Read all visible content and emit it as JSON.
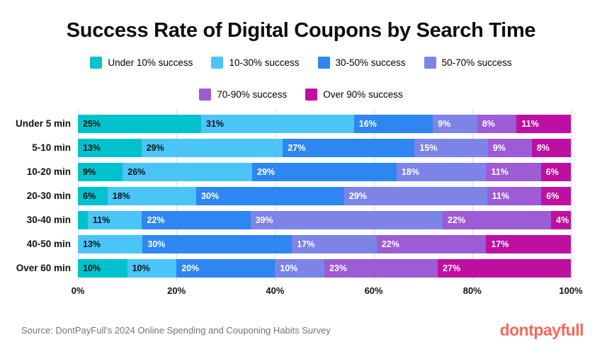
{
  "title": "Success Rate of Digital Coupons by Search Time",
  "footer": {
    "source": "Source: DontPayFull's 2024 Online Spending and Couponing Habits Survey",
    "logo": "dontpayfull",
    "logo_color": "#F8685C"
  },
  "chart_data": {
    "type": "bar",
    "orientation": "horizontal-stacked",
    "title": "Success Rate of Digital Coupons by Search Time",
    "categories": [
      "Under 5 min",
      "5-10 min",
      "10-20 min",
      "20-30 min",
      "30-40 min",
      "40-50 min",
      "Over 60 min"
    ],
    "series": [
      {
        "name": "Under 10% success",
        "color": "#00C2CC",
        "text_color": "#111111",
        "values": [
          25,
          13,
          9,
          6,
          2,
          0,
          10
        ]
      },
      {
        "name": "10-30% success",
        "color": "#4AC5F8",
        "text_color": "#111111",
        "values": [
          31,
          29,
          26,
          18,
          11,
          13,
          10
        ]
      },
      {
        "name": "30-50% success",
        "color": "#2E86F2",
        "text_color": "#ffffff",
        "values": [
          16,
          27,
          29,
          30,
          22,
          30,
          20
        ]
      },
      {
        "name": "50-70% success",
        "color": "#7D84E8",
        "text_color": "#ffffff",
        "values": [
          9,
          15,
          18,
          29,
          39,
          17,
          10
        ]
      },
      {
        "name": "70-90% success",
        "color": "#9D5BD5",
        "text_color": "#ffffff",
        "values": [
          8,
          9,
          11,
          11,
          22,
          22,
          23
        ]
      },
      {
        "name": "Over 90% success",
        "color": "#BE10A0",
        "text_color": "#ffffff",
        "values": [
          11,
          8,
          6,
          6,
          4,
          17,
          27
        ]
      }
    ],
    "x_ticks": [
      "0%",
      "20%",
      "40%",
      "60%",
      "80%",
      "100%"
    ],
    "x_range": [
      0,
      100
    ],
    "value_suffix": "%",
    "min_label_value": 4,
    "grid": true,
    "legend_position": "top",
    "legend_rows": [
      4,
      2
    ]
  }
}
